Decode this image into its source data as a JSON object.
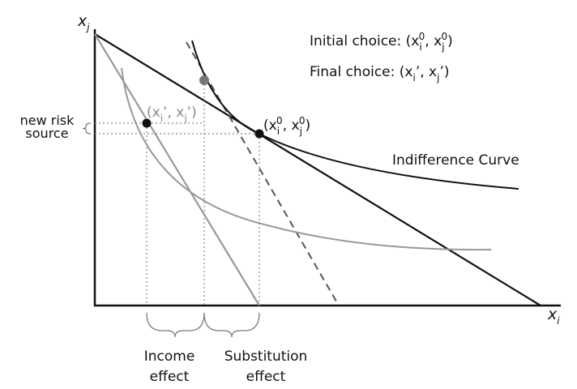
{
  "axes": {
    "y_label": [
      {
        "t": "x"
      },
      {
        "t": "j",
        "s": "sub"
      }
    ],
    "x_label": [
      {
        "t": "x"
      },
      {
        "t": "i",
        "s": "sub"
      }
    ]
  },
  "legend": [
    [
      {
        "t": "Initial choice: (x"
      },
      {
        "t": "i",
        "s": "sub"
      },
      {
        "t": "0",
        "s": "sup"
      },
      {
        "t": ", x"
      },
      {
        "t": "j",
        "s": "sub"
      },
      {
        "t": "0",
        "s": "sup"
      },
      {
        "t": ")"
      }
    ],
    [
      {
        "t": "Final choice: (x"
      },
      {
        "t": "i",
        "s": "sub"
      },
      {
        "t": "’, x"
      },
      {
        "t": "j",
        "s": "sub"
      },
      {
        "t": "’)"
      }
    ]
  ],
  "points": {
    "final": [
      {
        "t": "(x"
      },
      {
        "t": "i",
        "s": "sub"
      },
      {
        "t": "’, x"
      },
      {
        "t": "j",
        "s": "sub"
      },
      {
        "t": "’)"
      }
    ],
    "initial": [
      {
        "t": "(x"
      },
      {
        "t": "i",
        "s": "sub"
      },
      {
        "t": "0",
        "s": "sup"
      },
      {
        "t": ", x"
      },
      {
        "t": "j",
        "s": "sub"
      },
      {
        "t": "0",
        "s": "sup"
      },
      {
        "t": ")"
      }
    ]
  },
  "curve_label": "Indifference Curve",
  "risk_label": [
    "new risk",
    "source"
  ],
  "effects": {
    "income": [
      "Income",
      "effect"
    ],
    "substitution": [
      "Substitution",
      "effect"
    ]
  }
}
